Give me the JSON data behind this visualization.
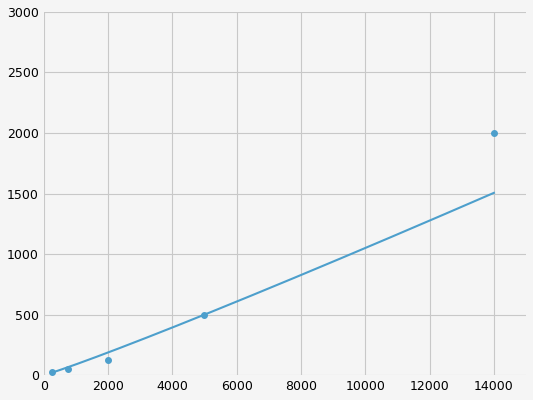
{
  "x": [
    250,
    750,
    2000,
    5000,
    14000
  ],
  "y": [
    30,
    50,
    125,
    500,
    2000
  ],
  "line_color": "#4d9fcc",
  "marker_color": "#4d9fcc",
  "marker_size": 4,
  "xlim": [
    0,
    15000
  ],
  "ylim": [
    0,
    3000
  ],
  "xticks": [
    0,
    2000,
    4000,
    6000,
    8000,
    10000,
    12000,
    14000
  ],
  "yticks": [
    0,
    500,
    1000,
    1500,
    2000,
    2500,
    3000
  ],
  "grid_color": "#c8c8c8",
  "background_color": "#f5f5f5",
  "line_width": 1.5
}
